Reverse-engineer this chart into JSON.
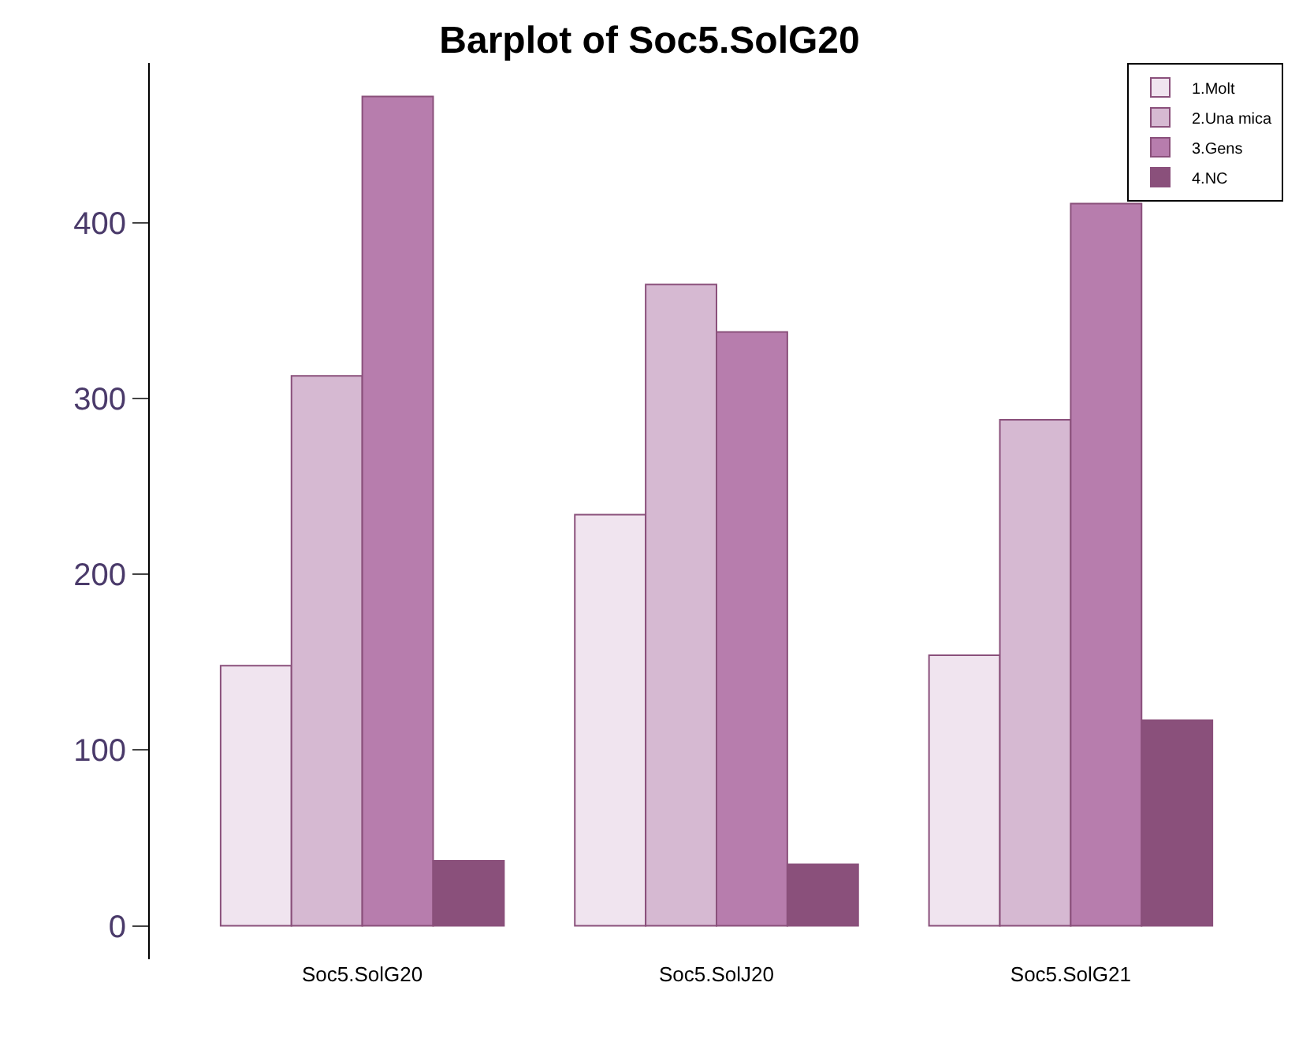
{
  "chart_data": {
    "type": "bar",
    "title": "Barplot of Soc5.SolG20",
    "categories": [
      "Soc5.SolG20",
      "Soc5.SolJ20",
      "Soc5.SolG21"
    ],
    "series": [
      {
        "name": "1.Molt",
        "color": "#f0e4ef",
        "values": [
          148,
          234,
          154
        ]
      },
      {
        "name": "2.Una mica",
        "color": "#d6b9d2",
        "values": [
          313,
          365,
          288
        ]
      },
      {
        "name": "3.Gens",
        "color": "#b77dad",
        "values": [
          472,
          338,
          411
        ]
      },
      {
        "name": "4.NC",
        "color": "#8a507b",
        "values": [
          37,
          35,
          117
        ]
      }
    ],
    "ylim": [
      -19,
      491
    ],
    "yticks": [
      0,
      100,
      200,
      300,
      400
    ],
    "legend": "top right"
  }
}
